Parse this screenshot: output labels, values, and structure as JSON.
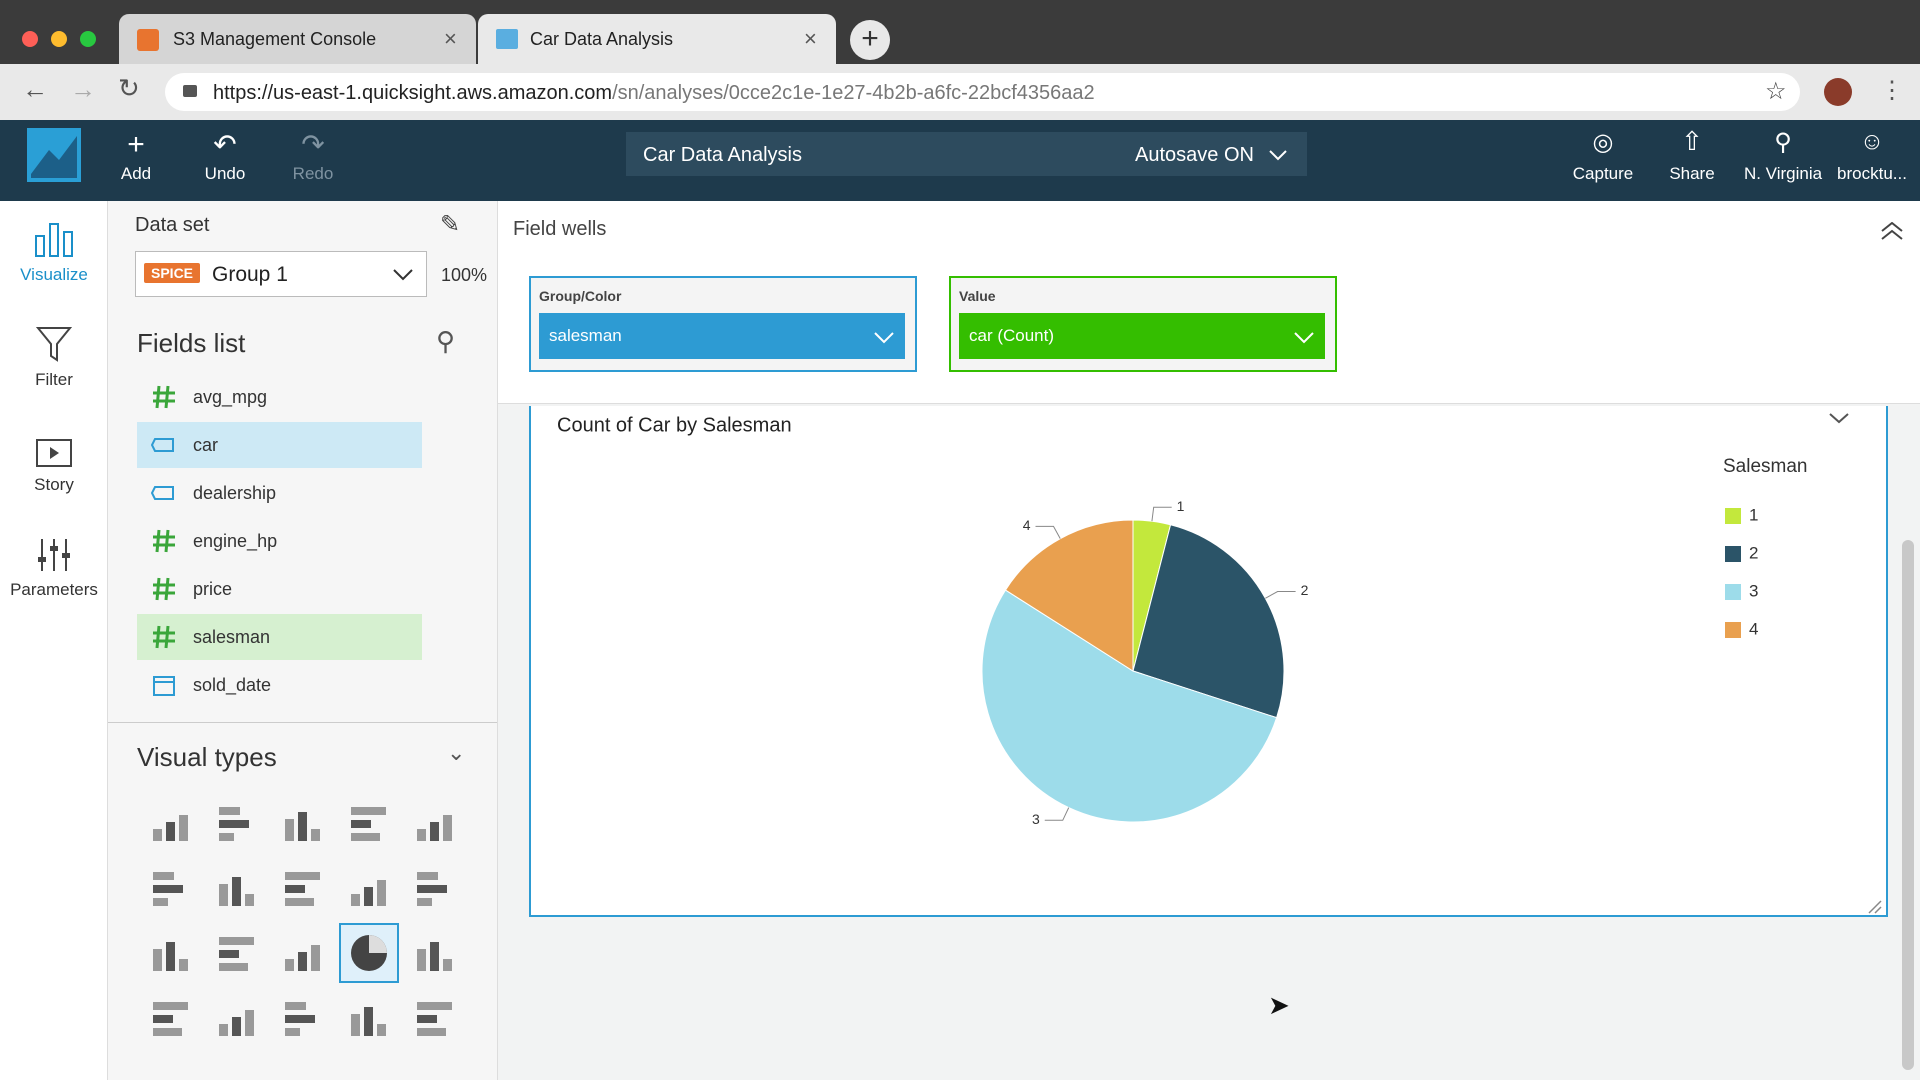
{
  "browser": {
    "tabs": [
      "S3 Management Console",
      "Car Data Analysis"
    ],
    "url_host": "https://us-east-1.quicksight.aws.amazon.com",
    "url_path": "/sn/analyses/0cce2c1e-1e27-4b2b-a6fc-22bcf4356aa2"
  },
  "toolbar": {
    "add": "Add",
    "undo": "Undo",
    "redo": "Redo",
    "analysis_name": "Car Data Analysis",
    "autosave": "Autosave ON",
    "capture": "Capture",
    "share": "Share",
    "region": "N. Virginia",
    "user": "brocktu..."
  },
  "nav": [
    "Visualize",
    "Filter",
    "Story",
    "Parameters"
  ],
  "dataset": {
    "label": "Data set",
    "badge": "SPICE",
    "name": "Group 1",
    "percent": "100%"
  },
  "fields": {
    "title": "Fields list",
    "items": [
      "avg_mpg",
      "car",
      "dealership",
      "engine_hp",
      "price",
      "salesman",
      "sold_date"
    ]
  },
  "visual_types": {
    "title": "Visual types"
  },
  "field_wells": {
    "title": "Field wells",
    "wells": [
      {
        "label": "Group/Color",
        "field": "salesman"
      },
      {
        "label": "Value",
        "field": "car (Count)"
      }
    ]
  },
  "chart_data": {
    "type": "pie",
    "title": "Count of Car by Salesman",
    "legend_title": "Salesman",
    "categories": [
      "1",
      "2",
      "3",
      "4"
    ],
    "values": [
      4,
      26,
      54,
      16
    ],
    "colors": [
      "#c3e83c",
      "#2b5468",
      "#9ddcea",
      "#e9a04f"
    ],
    "legend": "right"
  }
}
